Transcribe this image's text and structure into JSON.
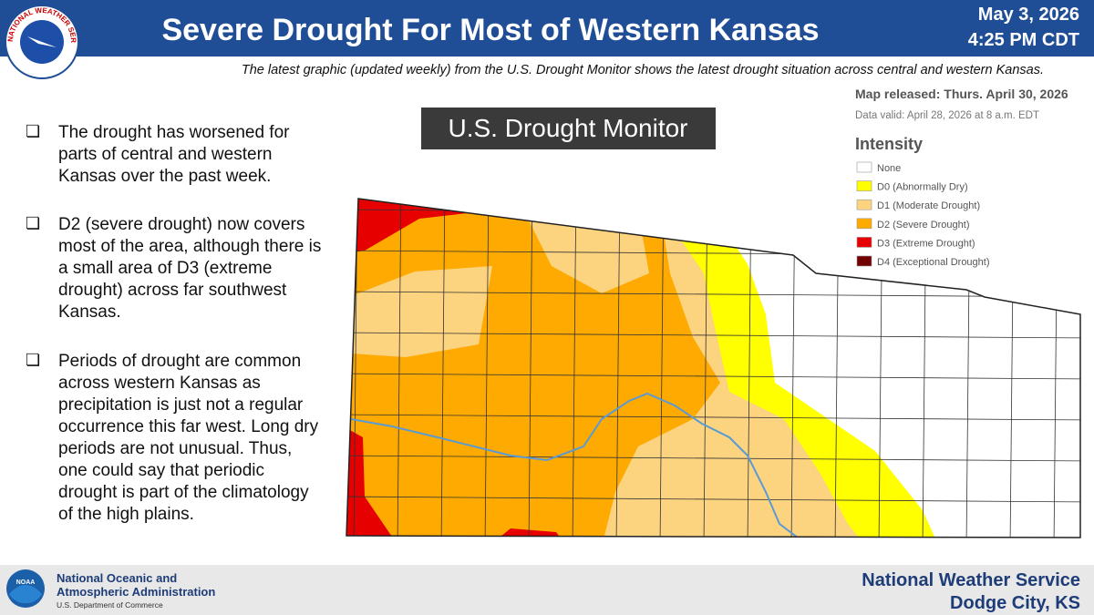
{
  "header": {
    "title": "Severe Drought For Most of Western Kansas",
    "date": "May 3, 2026",
    "time": "4:25 PM CDT",
    "subtitle": "The latest graphic (updated weekly) from the U.S. Drought Monitor shows the latest drought situation across central and western Kansas.",
    "logo_text": "NATIONAL WEATHER SERVICE"
  },
  "bullets": [
    "The drought has worsened for parts of central and western Kansas over the past week.",
    "D2 (severe drought) now covers most of the area, although there is a small area of D3 (extreme drought) across far southwest Kansas.",
    "Periods of drought are common across western Kansas as precipitation is just not a regular occurrence this far west. Long dry periods are not unusual. Thus, one could say that periodic drought is part of the climatology of the high plains."
  ],
  "map": {
    "title": "U.S. Drought Monitor",
    "released": "Map released: Thurs. April 30, 2026",
    "valid": "Data valid: April 28, 2026 at 8 a.m. EDT",
    "legend": {
      "title": "Intensity",
      "items": [
        {
          "label": "None",
          "color": "#ffffff"
        },
        {
          "label": "D0 (Abnormally Dry)",
          "color": "#ffff00"
        },
        {
          "label": "D1 (Moderate Drought)",
          "color": "#fcd37f"
        },
        {
          "label": "D2 (Severe Drought)",
          "color": "#ffaa00"
        },
        {
          "label": "D3 (Extreme Drought)",
          "color": "#e60000"
        },
        {
          "label": "D4 (Exceptional Drought)",
          "color": "#730000"
        }
      ]
    }
  },
  "footer": {
    "noaa_logo": "NOAA",
    "noaa_line1": "National Oceanic and",
    "noaa_line2": "Atmospheric Administration",
    "noaa_line3": "U.S. Department of Commerce",
    "office_line1": "National Weather Service",
    "office_line2": "Dodge City, KS"
  }
}
